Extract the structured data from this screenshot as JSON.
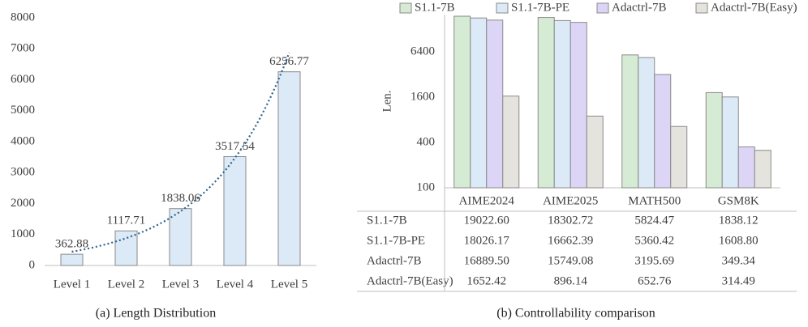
{
  "chart_data": [
    {
      "type": "bar",
      "caption": "(a) Length Distribution",
      "categories": [
        "Level 1",
        "Level 2",
        "Level 3",
        "Level 4",
        "Level 5"
      ],
      "values": [
        362.88,
        1117.71,
        1838.06,
        3517.54,
        6256.77
      ],
      "color": "#dce9f6",
      "trendline": true,
      "trendline_color": "#2e6390",
      "ylim": [
        0,
        8000
      ],
      "yticks": [
        0,
        1000,
        2000,
        3000,
        4000,
        5000,
        6000,
        7000,
        8000
      ],
      "grid": false
    },
    {
      "type": "bar",
      "caption": "(b) Controllability comparison",
      "ylabel": "Len.",
      "log_scale": true,
      "legend": "top",
      "data_table": true,
      "categories": [
        "AIME2024",
        "AIME2025",
        "MATH500",
        "GSM8K"
      ],
      "series": [
        {
          "name": "S1.1-7B",
          "color": "#d6ebd4",
          "values": [
            19022.6,
            18302.72,
            5824.47,
            1838.12
          ],
          "value_labels": [
            "19022.60",
            "18302.72",
            "5824.47",
            "1838.12"
          ]
        },
        {
          "name": "S1.1-7B-PE",
          "color": "#dceaf7",
          "values": [
            18026.17,
            16662.39,
            5360.42,
            1608.8
          ],
          "value_labels": [
            "18026.17",
            "16662.39",
            "5360.42",
            "1608.80"
          ]
        },
        {
          "name": "Adactrl-7B",
          "color": "#dcd5f5",
          "values": [
            16889.5,
            15749.08,
            3195.69,
            349.34
          ],
          "value_labels": [
            "16889.50",
            "15749.08",
            "3195.69",
            "349.34"
          ]
        },
        {
          "name": "Adactrl-7B(Easy)",
          "color": "#e5e3dd",
          "values": [
            1652.42,
            896.14,
            652.76,
            314.49
          ],
          "value_labels": [
            "1652.42",
            "896.14",
            "652.76",
            "314.49"
          ]
        }
      ],
      "ylim": [
        100,
        20000
      ],
      "yticks": [
        100,
        400,
        1600,
        6400
      ],
      "grid": false
    }
  ]
}
